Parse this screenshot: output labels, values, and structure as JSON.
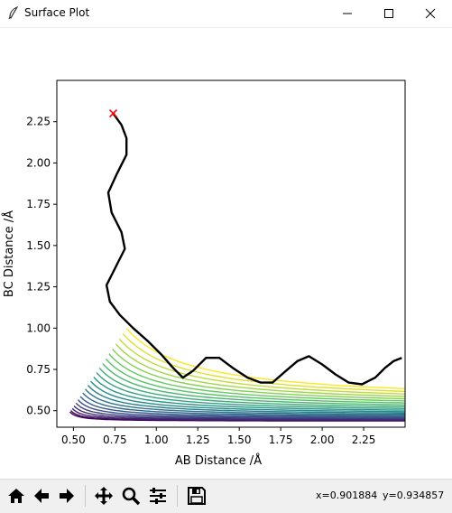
{
  "window": {
    "title": "Surface Plot",
    "app_icon": "feather-icon",
    "controls": [
      "minimize-icon",
      "maximize-icon",
      "close-icon"
    ]
  },
  "chart_data": {
    "type": "contour",
    "xlabel": "AB Distance /Å",
    "ylabel": "BC Distance /Å",
    "xlim": [
      0.4,
      2.5
    ],
    "ylim": [
      0.4,
      2.5
    ],
    "xticks": [
      "0.50",
      "0.75",
      "1.00",
      "1.25",
      "1.50",
      "1.75",
      "2.00",
      "2.25"
    ],
    "yticks": [
      "0.50",
      "0.75",
      "1.00",
      "1.25",
      "1.50",
      "1.75",
      "2.00",
      "2.25"
    ],
    "colormap": [
      "#440154",
      "#3b528b",
      "#21918c",
      "#5ec962",
      "#fde725"
    ],
    "grid": false,
    "start_marker": {
      "x": 0.74,
      "y": 2.3,
      "symbol": "x",
      "color": "#ff0000"
    },
    "trajectory": [
      [
        0.74,
        2.3
      ],
      [
        0.79,
        2.23
      ],
      [
        0.82,
        2.15
      ],
      [
        0.82,
        2.05
      ],
      [
        0.76,
        1.93
      ],
      [
        0.71,
        1.82
      ],
      [
        0.73,
        1.7
      ],
      [
        0.79,
        1.58
      ],
      [
        0.81,
        1.48
      ],
      [
        0.75,
        1.36
      ],
      [
        0.7,
        1.26
      ],
      [
        0.72,
        1.16
      ],
      [
        0.78,
        1.08
      ],
      [
        0.86,
        1.0
      ],
      [
        0.95,
        0.92
      ],
      [
        1.03,
        0.84
      ],
      [
        1.1,
        0.76
      ],
      [
        1.16,
        0.7
      ],
      [
        1.22,
        0.74
      ],
      [
        1.3,
        0.82
      ],
      [
        1.38,
        0.82
      ],
      [
        1.46,
        0.76
      ],
      [
        1.55,
        0.7
      ],
      [
        1.63,
        0.67
      ],
      [
        1.7,
        0.67
      ],
      [
        1.78,
        0.74
      ],
      [
        1.85,
        0.8
      ],
      [
        1.92,
        0.83
      ],
      [
        2.0,
        0.78
      ],
      [
        2.08,
        0.72
      ],
      [
        2.16,
        0.67
      ],
      [
        2.24,
        0.66
      ],
      [
        2.32,
        0.7
      ],
      [
        2.38,
        0.76
      ],
      [
        2.43,
        0.8
      ],
      [
        2.48,
        0.82
      ]
    ],
    "trajectory_color": "#000000"
  },
  "toolbar": {
    "buttons": [
      {
        "name": "home-button",
        "icon": "home-icon"
      },
      {
        "name": "back-button",
        "icon": "back-arrow-icon"
      },
      {
        "name": "forward-button",
        "icon": "forward-arrow-icon"
      },
      {
        "name": "pan-button",
        "icon": "move-icon"
      },
      {
        "name": "zoom-button",
        "icon": "zoom-icon"
      },
      {
        "name": "subplots-button",
        "icon": "sliders-icon"
      },
      {
        "name": "save-button",
        "icon": "save-icon"
      }
    ],
    "cursor_x": "x=0.901884",
    "cursor_y": "y=0.934857"
  }
}
